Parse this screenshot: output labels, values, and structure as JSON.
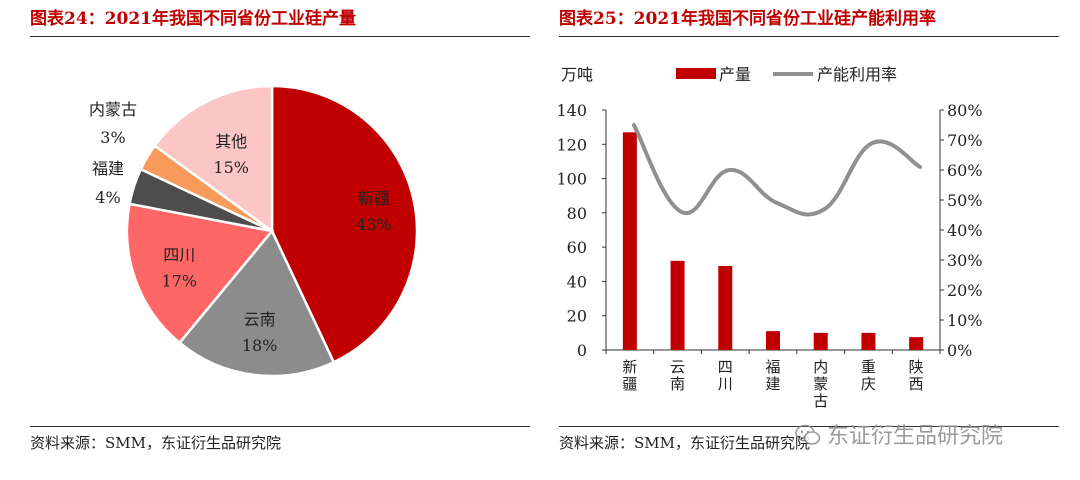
{
  "left": {
    "title": "图表24：2021年我国不同省份工业硅产量",
    "source": "资料来源：SMM，东证衍生品研究院"
  },
  "right": {
    "title": "图表25：2021年我国不同省份工业硅产能利用率",
    "source": "资料来源：SMM，东证衍生品研究院"
  },
  "watermark": {
    "text": "东证衍生品研究院",
    "icon": "wechat-icon"
  },
  "colors": {
    "title_red": "#c00000",
    "bar_red": "#c00000",
    "line_gray": "#909090"
  },
  "chart_data": [
    {
      "type": "pie",
      "title": "图表24：2021年我国不同省份工业硅产量",
      "slices": [
        {
          "label": "新疆",
          "value": 43,
          "pct_label": "43%",
          "color": "#c00000"
        },
        {
          "label": "云南",
          "value": 18,
          "pct_label": "18%",
          "color": "#8c8c8c"
        },
        {
          "label": "四川",
          "value": 17,
          "pct_label": "17%",
          "color": "#ff6666"
        },
        {
          "label": "福建",
          "value": 4,
          "pct_label": "4%",
          "color": "#4d4d4d"
        },
        {
          "label": "内蒙古",
          "value": 3,
          "pct_label": "3%",
          "color": "#f79a5a"
        },
        {
          "label": "其他",
          "value": 15,
          "pct_label": "15%",
          "color": "#fcc6c6"
        }
      ]
    },
    {
      "type": "bar+line",
      "title": "图表25：2021年我国不同省份工业硅产能利用率",
      "categories": [
        "新疆",
        "云南",
        "四川",
        "福建",
        "内蒙古",
        "重庆",
        "陕西"
      ],
      "series": [
        {
          "name": "产量",
          "type": "bar",
          "axis": "left",
          "unit": "万吨",
          "values": [
            127,
            52,
            49,
            11,
            10,
            10,
            7.5
          ]
        },
        {
          "name": "产能利用率",
          "type": "line",
          "axis": "right",
          "values": [
            0.75,
            0.46,
            0.6,
            0.49,
            0.47,
            0.69,
            0.61
          ]
        }
      ],
      "y_left": {
        "label": "万吨",
        "range": [
          0,
          140
        ],
        "ticks": [
          "0",
          "20",
          "40",
          "60",
          "80",
          "100",
          "120",
          "140"
        ]
      },
      "y_right": {
        "range": [
          0,
          0.8
        ],
        "ticks": [
          "0%",
          "10%",
          "20%",
          "30%",
          "40%",
          "50%",
          "60%",
          "70%",
          "80%"
        ]
      },
      "legend": {
        "placement": "top",
        "entries": [
          "产量",
          "产能利用率"
        ]
      }
    }
  ]
}
